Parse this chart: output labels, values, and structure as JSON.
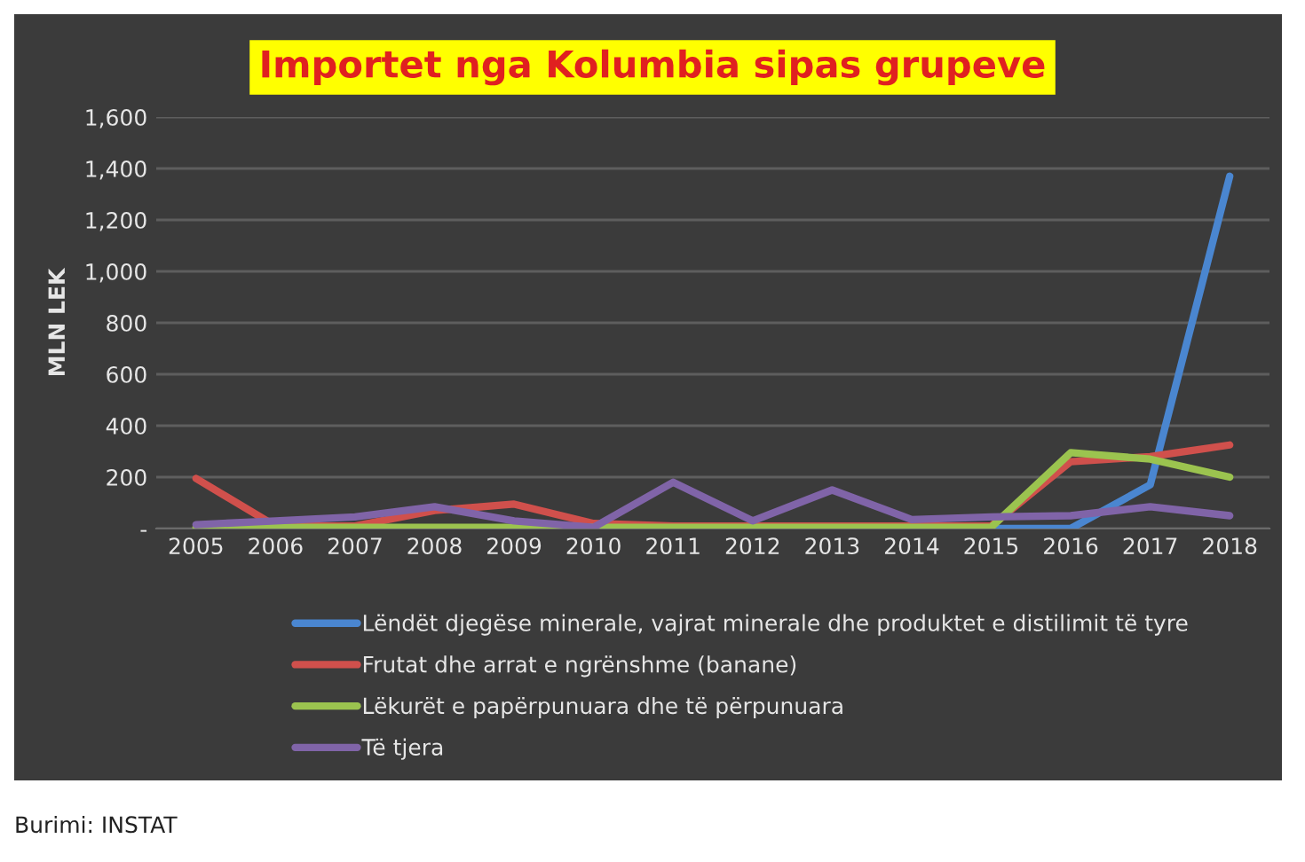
{
  "chart_data": {
    "type": "line",
    "title": "Importet nga Kolumbia sipas grupeve",
    "ylabel": "MLN LEK",
    "categories": [
      "2005",
      "2006",
      "2007",
      "2008",
      "2009",
      "2010",
      "2011",
      "2012",
      "2013",
      "2014",
      "2015",
      "2016",
      "2017",
      "2018"
    ],
    "series": [
      {
        "name": "Lëndët djegëse minerale, vajrat minerale dhe produktet e distilimit të tyre",
        "color": "#4a86d0",
        "values": [
          null,
          null,
          null,
          null,
          null,
          null,
          null,
          null,
          null,
          null,
          0,
          0,
          170,
          1370
        ]
      },
      {
        "name": "Frutat dhe arrat e ngrënshme (banane)",
        "color": "#d0504c",
        "values": [
          195,
          10,
          10,
          70,
          95,
          20,
          10,
          10,
          10,
          10,
          10,
          260,
          280,
          325
        ]
      },
      {
        "name": "Lëkurët e papërpunuara dhe të përpunuara",
        "color": "#9bc34f",
        "values": [
          5,
          5,
          5,
          5,
          5,
          5,
          5,
          5,
          5,
          5,
          5,
          295,
          270,
          200
        ]
      },
      {
        "name": "Të tjera",
        "color": "#8064a8",
        "values": [
          15,
          30,
          45,
          85,
          30,
          5,
          180,
          30,
          150,
          35,
          45,
          50,
          85,
          50
        ]
      }
    ],
    "ylim": [
      0,
      1600
    ],
    "yticks": [
      {
        "value": 0,
        "label": "-"
      },
      {
        "value": 200,
        "label": "200"
      },
      {
        "value": 400,
        "label": "400"
      },
      {
        "value": 600,
        "label": "600"
      },
      {
        "value": 800,
        "label": "800"
      },
      {
        "value": 1000,
        "label": "1,000"
      },
      {
        "value": 1200,
        "label": "1,200"
      },
      {
        "value": 1400,
        "label": "1,400"
      },
      {
        "value": 1600,
        "label": "1,600"
      }
    ],
    "grid": "y",
    "legend": "bottom",
    "marker": "none",
    "line_style": "solid",
    "annotations": [
      "Burimi: INSTAT"
    ]
  }
}
